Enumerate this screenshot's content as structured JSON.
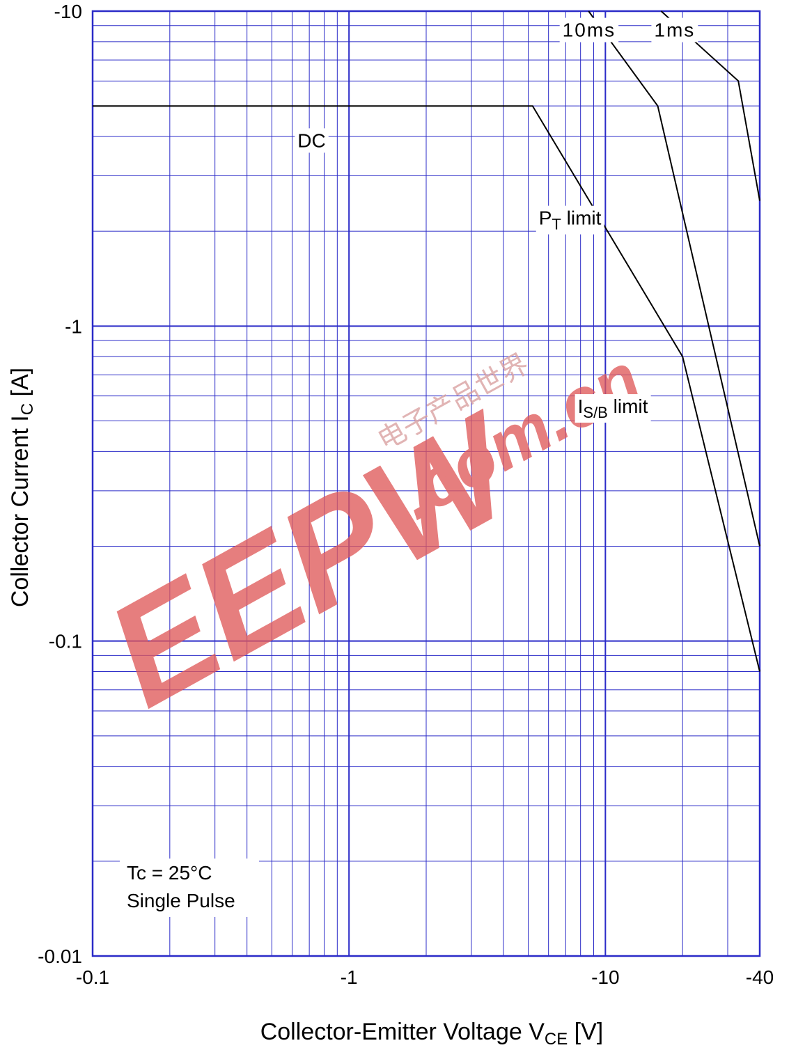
{
  "chart_data": {
    "type": "line",
    "title": "",
    "xscale": "log",
    "yscale": "log",
    "xlim": [
      -0.1,
      -40
    ],
    "ylim": [
      -0.01,
      -10
    ],
    "xlabel": {
      "main": "Collector-Emitter Voltage  V",
      "sub": "CE",
      "unit": "  [V]"
    },
    "ylabel": {
      "main": "Collector Current  I",
      "sub": "C",
      "unit": "  [A]"
    },
    "x_ticks": [
      {
        "value": -0.1,
        "label": "-0.1"
      },
      {
        "value": -1,
        "label": "-1"
      },
      {
        "value": -10,
        "label": "-10"
      },
      {
        "value": -40,
        "label": "-40"
      }
    ],
    "y_ticks": [
      {
        "value": -10,
        "label": "-10"
      },
      {
        "value": -1,
        "label": "-1"
      },
      {
        "value": -0.1,
        "label": "-0.1"
      },
      {
        "value": -0.01,
        "label": "-0.01"
      }
    ],
    "grid": true,
    "series": [
      {
        "id": "dc",
        "x": [
          -0.1,
          -5.2,
          -20,
          -40
        ],
        "y": [
          -5,
          -5,
          -0.8,
          -0.08
        ]
      },
      {
        "id": "10ms",
        "x": [
          -8.6,
          -16,
          -40
        ],
        "y": [
          -10,
          -5,
          -0.2
        ]
      },
      {
        "id": "1ms",
        "x": [
          -16.5,
          -33,
          -40
        ],
        "y": [
          -10,
          -6,
          -2.5
        ]
      }
    ],
    "annotations": [
      {
        "id": "dc-label",
        "text": "DC",
        "x": -0.63,
        "y": -3.7
      },
      {
        "id": "pt-label",
        "main": "P",
        "sub": "T",
        "rest": "  limit",
        "x": -5.5,
        "y": -2.1
      },
      {
        "id": "isb-label",
        "main": "I",
        "sub": "S/B",
        "rest": "  limit",
        "x": -7.8,
        "y": -0.53
      },
      {
        "id": "10ms-label",
        "text": "10ms",
        "x": -6.8,
        "y": -8.3
      },
      {
        "id": "1ms-label",
        "text": "1ms",
        "x": -15.5,
        "y": -8.3
      }
    ],
    "conditions": [
      "Tc = 25°C",
      "Single  Pulse"
    ]
  },
  "watermark": {
    "brand": "EEPW",
    "domain": ".com.cn",
    "cn_text": "电子产品世界",
    "color": "#e05a5a"
  },
  "colors": {
    "grid": "#2b2bc8",
    "line": "#000000"
  }
}
